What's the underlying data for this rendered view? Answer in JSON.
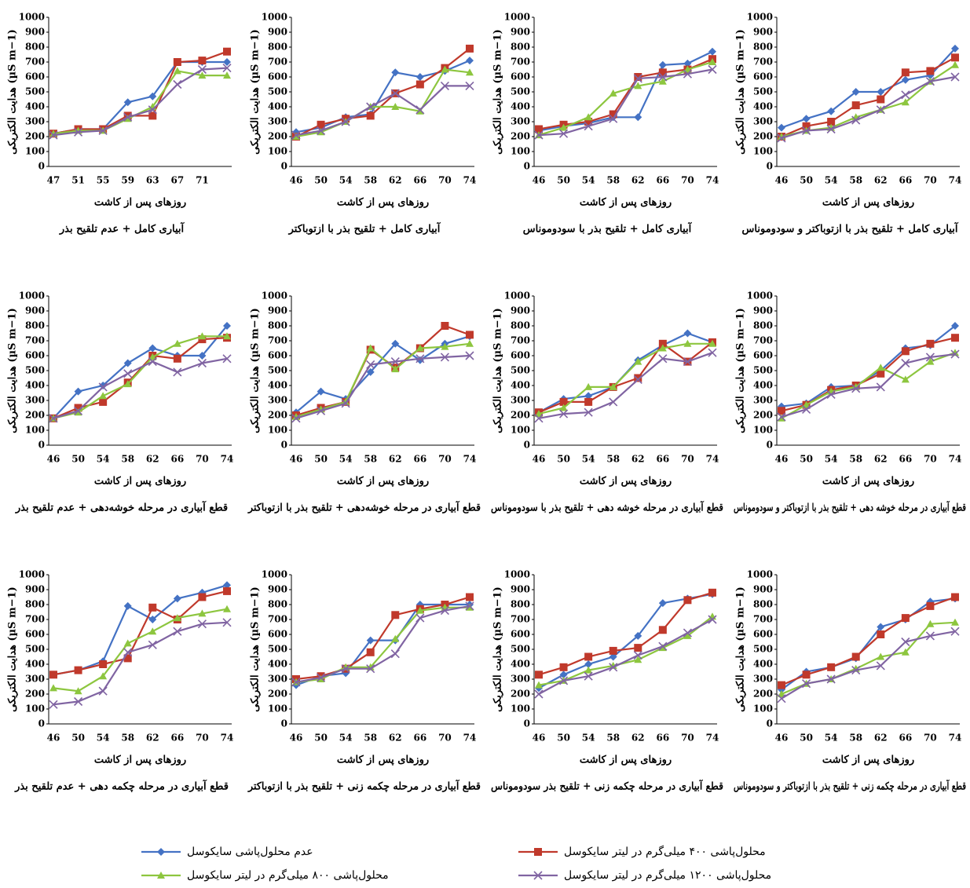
{
  "legend": [
    {
      "name": "عدم محلول‌پاشی سایکوسل",
      "color": "#4472c4",
      "marker": "diamond"
    },
    {
      "name": "محلول‌پاشی ۴۰۰ میلی‌گرم در لیتر سایکوسل",
      "color": "#c0392b",
      "marker": "square"
    },
    {
      "name": "محلول‌پاشی ۸۰۰ میلی‌گرم در لیتر سایکوسل",
      "color": "#8dc63f",
      "marker": "triangle"
    },
    {
      "name": "محلول‌پاشی ۱۲۰۰ میلی‌گرم در لیتر سایکوسل",
      "color": "#8064a2",
      "marker": "x"
    }
  ],
  "chart_data": [
    {
      "type": "line",
      "caption": "آبیاری کامل + عدم تلقیح بذر",
      "x_label": "روزهای پس از کاشت",
      "y_label": "هدایت الکتریکی (µS m−1)",
      "categories": [
        "47",
        "51",
        "55",
        "59",
        "63",
        "67",
        "71",
        null
      ],
      "ylim": [
        0,
        1000
      ],
      "yticks": [
        0,
        100,
        200,
        300,
        400,
        500,
        600,
        700,
        800,
        900,
        1000
      ],
      "series": [
        {
          "values": [
            220,
            250,
            250,
            430,
            470,
            700,
            700,
            700
          ]
        },
        {
          "values": [
            220,
            250,
            250,
            340,
            340,
            700,
            710,
            770
          ]
        },
        {
          "values": [
            220,
            240,
            240,
            320,
            400,
            640,
            610,
            610
          ]
        },
        {
          "values": [
            210,
            230,
            240,
            330,
            380,
            550,
            650,
            660
          ]
        }
      ]
    },
    {
      "type": "line",
      "caption": "آبیاری کامل + تلقیح بذر با ازتوباکتر",
      "x_label": "روزهای پس از کاشت",
      "y_label": "هدایت الکتریکی (µS m−1)",
      "categories": [
        "46",
        "50",
        "54",
        "58",
        "62",
        "66",
        "70",
        "74"
      ],
      "ylim": [
        0,
        1000
      ],
      "yticks": [
        0,
        100,
        200,
        300,
        400,
        500,
        600,
        700,
        800,
        900,
        1000
      ],
      "series": [
        {
          "values": [
            230,
            260,
            330,
            350,
            630,
            600,
            640,
            710
          ]
        },
        {
          "values": [
            200,
            280,
            320,
            340,
            490,
            550,
            660,
            790
          ]
        },
        {
          "values": [
            200,
            230,
            300,
            400,
            400,
            370,
            650,
            630
          ]
        },
        {
          "values": [
            210,
            240,
            300,
            400,
            490,
            380,
            540,
            540
          ]
        }
      ]
    },
    {
      "type": "line",
      "caption": "آبیاری کامل + تلقیح بذر با سودوموناس",
      "x_label": "روزهای پس از کاشت",
      "y_label": "هدایت الکتریکی (µS m−1)",
      "categories": [
        "46",
        "50",
        "54",
        "58",
        "62",
        "66",
        "70",
        "74"
      ],
      "ylim": [
        0,
        1000
      ],
      "yticks": [
        0,
        100,
        200,
        300,
        400,
        500,
        600,
        700,
        800,
        900,
        1000
      ],
      "series": [
        {
          "values": [
            240,
            270,
            290,
            330,
            330,
            680,
            690,
            770
          ]
        },
        {
          "values": [
            250,
            280,
            300,
            350,
            600,
            630,
            650,
            720
          ]
        },
        {
          "values": [
            210,
            260,
            330,
            490,
            540,
            570,
            650,
            700
          ]
        },
        {
          "values": [
            210,
            220,
            270,
            320,
            590,
            600,
            620,
            650
          ]
        }
      ]
    },
    {
      "type": "line",
      "caption": "آبیاری کامل + تلقیح بذر با ازتوباکتر و سودوموناس",
      "x_label": "روزهای پس از کاشت",
      "y_label": "هدایت الکتریکی (µS m−1)",
      "categories": [
        "46",
        "50",
        "54",
        "58",
        "62",
        "66",
        "70",
        "74"
      ],
      "ylim": [
        0,
        1000
      ],
      "yticks": [
        0,
        100,
        200,
        300,
        400,
        500,
        600,
        700,
        800,
        900,
        1000
      ],
      "series": [
        {
          "values": [
            260,
            320,
            370,
            500,
            500,
            580,
            610,
            790
          ]
        },
        {
          "values": [
            200,
            270,
            300,
            410,
            450,
            630,
            640,
            730
          ]
        },
        {
          "values": [
            200,
            240,
            260,
            330,
            380,
            430,
            570,
            680
          ]
        },
        {
          "values": [
            190,
            240,
            250,
            310,
            380,
            480,
            570,
            600
          ]
        }
      ]
    },
    {
      "type": "line",
      "caption": "قطع آبیاری در مرحله خوشه‌دهی + عدم تلقیح بذر",
      "x_label": "روزهای پس از کاشت",
      "y_label": "هدایت الکتریکی (µS m−1)",
      "categories": [
        "46",
        "50",
        "54",
        "58",
        "62",
        "66",
        "70",
        "74"
      ],
      "ylim": [
        0,
        1000
      ],
      "yticks": [
        0,
        100,
        200,
        300,
        400,
        500,
        600,
        700,
        800,
        900,
        1000
      ],
      "series": [
        {
          "values": [
            180,
            360,
            400,
            550,
            650,
            600,
            600,
            800
          ]
        },
        {
          "values": [
            180,
            250,
            290,
            420,
            600,
            580,
            710,
            720
          ]
        },
        {
          "values": [
            180,
            220,
            330,
            410,
            590,
            680,
            730,
            730
          ]
        },
        {
          "values": [
            180,
            230,
            390,
            480,
            560,
            490,
            550,
            580
          ]
        }
      ]
    },
    {
      "type": "line",
      "caption": "قطع آبیاری در مرحله خوشه‌دهی + تلقیح بذر با ازتوباکتر",
      "x_label": "روزهای پس از کاشت",
      "y_label": "هدایت الکتریکی (µS m−1)",
      "categories": [
        "46",
        "50",
        "54",
        "58",
        "62",
        "66",
        "70",
        "74"
      ],
      "ylim": [
        0,
        1000
      ],
      "yticks": [
        0,
        100,
        200,
        300,
        400,
        500,
        600,
        700,
        800,
        900,
        1000
      ],
      "series": [
        {
          "values": [
            220,
            360,
            310,
            490,
            680,
            570,
            680,
            730
          ]
        },
        {
          "values": [
            200,
            250,
            290,
            640,
            520,
            650,
            800,
            740
          ]
        },
        {
          "values": [
            190,
            240,
            290,
            650,
            510,
            650,
            660,
            680
          ]
        },
        {
          "values": [
            180,
            230,
            280,
            540,
            560,
            580,
            590,
            600
          ]
        }
      ]
    },
    {
      "type": "line",
      "caption": "قطع آبیاری در مرحله خوشه دهی + تلقیح بذر با سودوموناس",
      "x_label": "روزهای پس از کاشت",
      "y_label": "هدایت الکتریکی (µS m−1)",
      "categories": [
        "46",
        "50",
        "54",
        "58",
        "62",
        "66",
        "70",
        "74"
      ],
      "ylim": [
        0,
        1000
      ],
      "yticks": [
        0,
        100,
        200,
        300,
        400,
        500,
        600,
        700,
        800,
        900,
        1000
      ],
      "series": [
        {
          "values": [
            220,
            310,
            330,
            390,
            570,
            670,
            750,
            690
          ]
        },
        {
          "values": [
            220,
            290,
            290,
            390,
            450,
            680,
            560,
            690
          ]
        },
        {
          "values": [
            210,
            250,
            390,
            390,
            560,
            650,
            680,
            680
          ]
        },
        {
          "values": [
            180,
            210,
            220,
            290,
            440,
            580,
            560,
            620
          ]
        }
      ]
    },
    {
      "type": "line",
      "caption": "قطع آبیاری در مرحله خوشه دهی + تلقیح بذر با ازتوباکتر و سودوموناس",
      "x_label": "روزهای پس از کاشت",
      "y_label": "هدایت الکتریکی (µS m−1)",
      "categories": [
        "46",
        "50",
        "54",
        "58",
        "62",
        "66",
        "70",
        "74"
      ],
      "ylim": [
        0,
        1000
      ],
      "yticks": [
        0,
        100,
        200,
        300,
        400,
        500,
        600,
        700,
        800,
        900,
        1000
      ],
      "series": [
        {
          "values": [
            260,
            280,
            390,
            400,
            500,
            650,
            670,
            800
          ]
        },
        {
          "values": [
            230,
            270,
            370,
            400,
            480,
            630,
            680,
            720
          ]
        },
        {
          "values": [
            180,
            270,
            360,
            390,
            520,
            440,
            560,
            620
          ]
        },
        {
          "values": [
            190,
            240,
            340,
            380,
            390,
            550,
            590,
            610
          ]
        }
      ]
    },
    {
      "type": "line",
      "caption": "قطع آبیاری در مرحله چکمه دهی + عدم تلقیح بذر",
      "x_label": "روزهای پس از کاشت",
      "y_label": "هدایت الکتریکی (µS m−1)",
      "categories": [
        "46",
        "50",
        "54",
        "58",
        "62",
        "66",
        "70",
        "74"
      ],
      "ylim": [
        0,
        1000
      ],
      "yticks": [
        0,
        100,
        200,
        300,
        400,
        500,
        600,
        700,
        800,
        900,
        1000
      ],
      "series": [
        {
          "values": [
            330,
            360,
            420,
            790,
            700,
            840,
            880,
            930
          ]
        },
        {
          "values": [
            330,
            360,
            400,
            440,
            780,
            700,
            850,
            890
          ]
        },
        {
          "values": [
            240,
            220,
            320,
            540,
            620,
            710,
            740,
            770
          ]
        },
        {
          "values": [
            130,
            150,
            220,
            480,
            530,
            620,
            670,
            680
          ]
        }
      ]
    },
    {
      "type": "line",
      "caption": "قطع آبیاری در مرحله چکمه زنی + تلقیح بذر با ازتوباکتر",
      "x_label": "روزهای پس از کاشت",
      "y_label": "هدایت الکتریکی (µS m−1)",
      "categories": [
        "46",
        "50",
        "54",
        "58",
        "62",
        "66",
        "70",
        "74"
      ],
      "ylim": [
        0,
        1000
      ],
      "yticks": [
        0,
        100,
        200,
        300,
        400,
        500,
        600,
        700,
        800,
        900,
        1000
      ],
      "series": [
        {
          "values": [
            260,
            320,
            340,
            560,
            560,
            800,
            800,
            800
          ]
        },
        {
          "values": [
            300,
            320,
            370,
            480,
            730,
            770,
            800,
            850
          ]
        },
        {
          "values": [
            280,
            300,
            380,
            380,
            570,
            760,
            780,
            780
          ]
        },
        {
          "values": [
            280,
            310,
            370,
            370,
            470,
            710,
            760,
            790
          ]
        }
      ]
    },
    {
      "type": "line",
      "caption": "قطع آبیاری در مرحله چکمه زنی + تلقیح بذر سودوموناس",
      "x_label": "روزهای پس از کاشت",
      "y_label": "هدایت الکتریکی (µS m−1)",
      "categories": [
        "46",
        "50",
        "54",
        "58",
        "62",
        "66",
        "70",
        "74"
      ],
      "ylim": [
        0,
        1000
      ],
      "yticks": [
        0,
        100,
        200,
        300,
        400,
        500,
        600,
        700,
        800,
        900,
        1000
      ],
      "series": [
        {
          "values": [
            240,
            330,
            400,
            450,
            590,
            810,
            840,
            870
          ]
        },
        {
          "values": [
            330,
            380,
            450,
            490,
            510,
            630,
            830,
            880
          ]
        },
        {
          "values": [
            260,
            290,
            360,
            390,
            430,
            510,
            590,
            720
          ]
        },
        {
          "values": [
            200,
            290,
            320,
            380,
            460,
            520,
            610,
            700
          ]
        }
      ]
    },
    {
      "type": "line",
      "caption": "قطع آبیاری در مرحله چکمه زنی + تلقیح بذر با ازتوباکتر و سودوموناس",
      "x_label": "روزهای پس از کاشت",
      "y_label": "هدایت الکتریکی (µS m−1)",
      "categories": [
        "46",
        "50",
        "54",
        "58",
        "62",
        "66",
        "70",
        "74"
      ],
      "ylim": [
        0,
        1000
      ],
      "yticks": [
        0,
        100,
        200,
        300,
        400,
        500,
        600,
        700,
        800,
        900,
        1000
      ],
      "series": [
        {
          "values": [
            230,
            350,
            380,
            440,
            650,
            700,
            820,
            840
          ]
        },
        {
          "values": [
            260,
            330,
            380,
            450,
            600,
            710,
            790,
            850
          ]
        },
        {
          "values": [
            200,
            270,
            300,
            370,
            450,
            480,
            670,
            680
          ]
        },
        {
          "values": [
            170,
            270,
            300,
            360,
            390,
            550,
            590,
            620
          ]
        }
      ]
    }
  ]
}
